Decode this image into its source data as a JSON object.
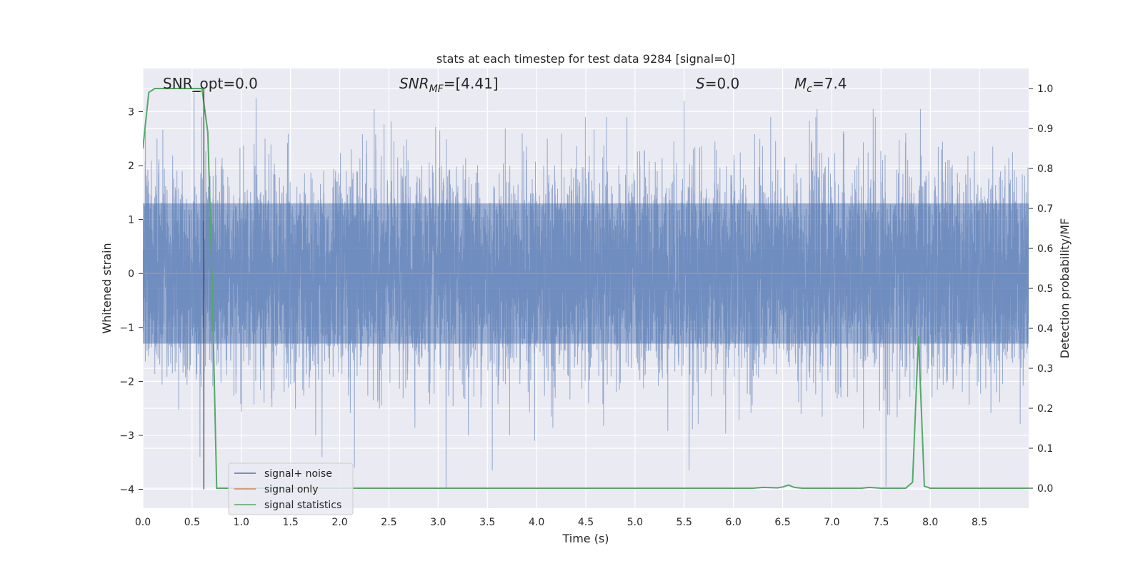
{
  "chart_data": {
    "type": "line",
    "title": "stats at each timestep for test data 9284 [signal=0]",
    "xlabel": "Time (s)",
    "ylabel_left": "Whitened strain",
    "ylabel_right": "Detection probability/MF",
    "xlim": [
      0.0,
      9.0
    ],
    "ylim_left": [
      -4.35,
      3.8
    ],
    "ylim_right": [
      -0.05,
      1.05
    ],
    "x_ticks": [
      "0.0",
      "0.5",
      "1.0",
      "1.5",
      "2.0",
      "2.5",
      "3.0",
      "3.5",
      "4.0",
      "4.5",
      "5.0",
      "5.5",
      "6.0",
      "6.5",
      "7.0",
      "7.5",
      "8.0",
      "8.5"
    ],
    "y_ticks_left": [
      "−4",
      "−3",
      "−2",
      "−1",
      "0",
      "1",
      "2",
      "3"
    ],
    "y_ticks_right": [
      "0.0",
      "0.1",
      "0.2",
      "0.3",
      "0.4",
      "0.5",
      "0.6",
      "0.7",
      "0.8",
      "0.9",
      "1.0"
    ],
    "grid": true,
    "legend_position": "lower-left",
    "annotations": {
      "snr_opt": "SNR_opt=0.0",
      "snr_mf_sym": "SNR",
      "snr_mf_sub": "MF",
      "snr_mf_val": "=[4.41]",
      "s_sym": "S",
      "s_val": "=0.0",
      "mc_sym": "M",
      "mc_sub": "c",
      "mc_val": "=7.4"
    },
    "marker_time": 0.62,
    "series": [
      {
        "name": "signal+ noise",
        "color": "#4c72b0",
        "description": "dense white noise, amplitude roughly within [-4, 3.3]",
        "envelope_core": [
          -1.3,
          1.3
        ],
        "peaks": [
          {
            "x": 0.52,
            "y": 3.35
          },
          {
            "x": 0.58,
            "y": -3.4
          },
          {
            "x": 1.15,
            "y": 3.25
          },
          {
            "x": 1.82,
            "y": -3.4
          },
          {
            "x": 2.15,
            "y": -3.6
          },
          {
            "x": 2.35,
            "y": 3.05
          },
          {
            "x": 3.08,
            "y": -4.0
          },
          {
            "x": 3.55,
            "y": -3.65
          },
          {
            "x": 3.98,
            "y": -3.1
          },
          {
            "x": 5.5,
            "y": 3.2
          },
          {
            "x": 5.55,
            "y": -3.65
          },
          {
            "x": 6.85,
            "y": 3.05
          },
          {
            "x": 7.42,
            "y": 3.05
          },
          {
            "x": 7.55,
            "y": -3.95
          },
          {
            "x": 7.9,
            "y": 3.05
          }
        ]
      },
      {
        "name": "signal only",
        "color": "#dd8452",
        "values_left_axis": 0
      },
      {
        "name": "signal statistics",
        "color": "#55a868",
        "axis": "right",
        "x": [
          0.0,
          0.06,
          0.12,
          0.3,
          0.45,
          0.6,
          0.66,
          0.7,
          0.75,
          1.0,
          2.0,
          3.0,
          4.0,
          5.0,
          6.0,
          6.2,
          6.3,
          6.45,
          6.5,
          6.56,
          6.62,
          6.7,
          7.0,
          7.3,
          7.38,
          7.5,
          7.75,
          7.82,
          7.88,
          7.94,
          8.0,
          8.5,
          9.0
        ],
        "y": [
          0.85,
          0.99,
          1.0,
          1.0,
          1.0,
          1.0,
          0.89,
          0.55,
          0.0,
          0.0,
          0.0,
          0.0,
          0.0,
          0.0,
          0.0,
          0.0,
          0.002,
          0.001,
          0.003,
          0.008,
          0.002,
          0.0,
          0.0,
          0.0,
          0.002,
          0.0,
          0.0,
          0.015,
          0.38,
          0.005,
          0.0,
          0.0,
          0.0
        ]
      }
    ]
  }
}
